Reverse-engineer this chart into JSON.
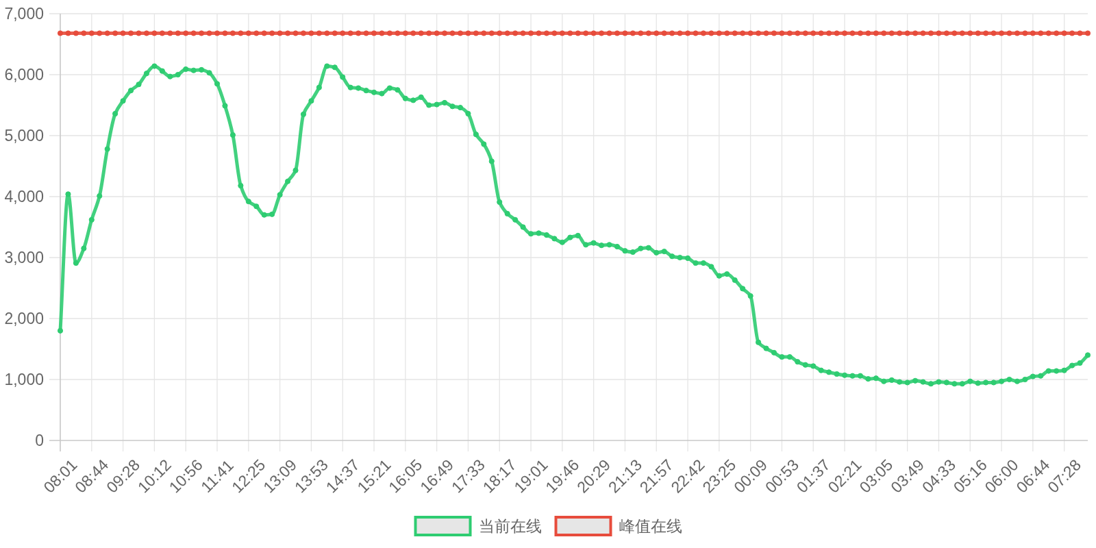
{
  "chart_data": {
    "type": "line",
    "categories": [
      "08:01",
      null,
      null,
      null,
      "08:44",
      null,
      null,
      null,
      "09:28",
      null,
      null,
      null,
      "10:12",
      null,
      null,
      null,
      "10:56",
      null,
      null,
      null,
      "11:41",
      null,
      null,
      null,
      "12:25",
      null,
      null,
      null,
      "13:09",
      null,
      null,
      null,
      "13:53",
      null,
      null,
      null,
      "14:37",
      null,
      null,
      null,
      "15:21",
      null,
      null,
      null,
      "16:05",
      null,
      null,
      null,
      "16:49",
      null,
      null,
      null,
      "17:33",
      null,
      null,
      null,
      "18:17",
      null,
      null,
      null,
      "19:01",
      null,
      null,
      null,
      "19:46",
      null,
      null,
      null,
      "20:29",
      null,
      null,
      null,
      "21:13",
      null,
      null,
      null,
      "21:57",
      null,
      null,
      null,
      "22:42",
      null,
      null,
      null,
      "23:25",
      null,
      null,
      null,
      "00:09",
      null,
      null,
      null,
      "00:53",
      null,
      null,
      null,
      "01:37",
      null,
      null,
      null,
      "02:21",
      null,
      null,
      null,
      "03:05",
      null,
      null,
      null,
      "03:49",
      null,
      null,
      null,
      "04:33",
      null,
      null,
      null,
      "05:16",
      null,
      null,
      null,
      "06:00",
      null,
      null,
      null,
      "06:44",
      null,
      null,
      null,
      "07:28",
      null,
      null,
      null
    ],
    "series": [
      {
        "name": "当前在线",
        "color": "#2ecc71",
        "values": [
          1800,
          4040,
          2910,
          3150,
          3620,
          4010,
          4780,
          5360,
          5570,
          5740,
          5840,
          6020,
          6140,
          6060,
          5970,
          6000,
          6090,
          6070,
          6080,
          6030,
          5850,
          5490,
          5010,
          4180,
          3920,
          3840,
          3700,
          3710,
          4030,
          4250,
          4430,
          5350,
          5570,
          5790,
          6140,
          6120,
          5960,
          5790,
          5780,
          5740,
          5710,
          5690,
          5780,
          5750,
          5610,
          5580,
          5630,
          5500,
          5510,
          5540,
          5480,
          5460,
          5360,
          5020,
          4860,
          4580,
          3910,
          3720,
          3620,
          3500,
          3390,
          3400,
          3370,
          3310,
          3250,
          3330,
          3360,
          3210,
          3240,
          3200,
          3210,
          3180,
          3110,
          3090,
          3150,
          3160,
          3080,
          3100,
          3020,
          3000,
          2990,
          2910,
          2910,
          2850,
          2700,
          2730,
          2630,
          2490,
          2370,
          1610,
          1510,
          1440,
          1370,
          1370,
          1290,
          1240,
          1220,
          1150,
          1120,
          1090,
          1070,
          1060,
          1060,
          1010,
          1020,
          970,
          990,
          960,
          950,
          980,
          960,
          930,
          960,
          950,
          930,
          930,
          970,
          940,
          950,
          950,
          970,
          1000,
          970,
          1000,
          1050,
          1060,
          1140,
          1140,
          1150,
          1230,
          1270,
          1400
        ]
      },
      {
        "name": "峰值在线",
        "color": "#e74c3c",
        "values": [
          6680,
          6680,
          6680,
          6680,
          6680,
          6680,
          6680,
          6680,
          6680,
          6680,
          6680,
          6680,
          6680,
          6680,
          6680,
          6680,
          6680,
          6680,
          6680,
          6680,
          6680,
          6680,
          6680,
          6680,
          6680,
          6680,
          6680,
          6680,
          6680,
          6680,
          6680,
          6680,
          6680,
          6680,
          6680,
          6680,
          6680,
          6680,
          6680,
          6680,
          6680,
          6680,
          6680,
          6680,
          6680,
          6680,
          6680,
          6680,
          6680,
          6680,
          6680,
          6680,
          6680,
          6680,
          6680,
          6680,
          6680,
          6680,
          6680,
          6680,
          6680,
          6680,
          6680,
          6680,
          6680,
          6680,
          6680,
          6680,
          6680,
          6680,
          6680,
          6680,
          6680,
          6680,
          6680,
          6680,
          6680,
          6680,
          6680,
          6680,
          6680,
          6680,
          6680,
          6680,
          6680,
          6680,
          6680,
          6680,
          6680,
          6680,
          6680,
          6680,
          6680,
          6680,
          6680,
          6680,
          6680,
          6680,
          6680,
          6680,
          6680,
          6680,
          6680,
          6680,
          6680,
          6680,
          6680,
          6680,
          6680,
          6680,
          6680,
          6680,
          6680,
          6680,
          6680,
          6680,
          6680,
          6680,
          6680,
          6680,
          6680,
          6680,
          6680,
          6680,
          6680,
          6680,
          6680,
          6680,
          6680,
          6680,
          6680,
          6680
        ]
      }
    ],
    "ylim": [
      0,
      7000
    ],
    "yticks": [
      0,
      {
        "value": 1000,
        "label": "1,000"
      },
      {
        "value": 2000,
        "label": "2,000"
      },
      {
        "value": 3000,
        "label": "3,000"
      },
      {
        "value": 4000,
        "label": "4,000"
      },
      {
        "value": 5000,
        "label": "5,000"
      },
      {
        "value": 6000,
        "label": "6,000"
      },
      {
        "value": 7000,
        "label": "7,000"
      }
    ],
    "grid": true,
    "legend": "bottom",
    "marker": "circle",
    "line_style": "solid"
  }
}
